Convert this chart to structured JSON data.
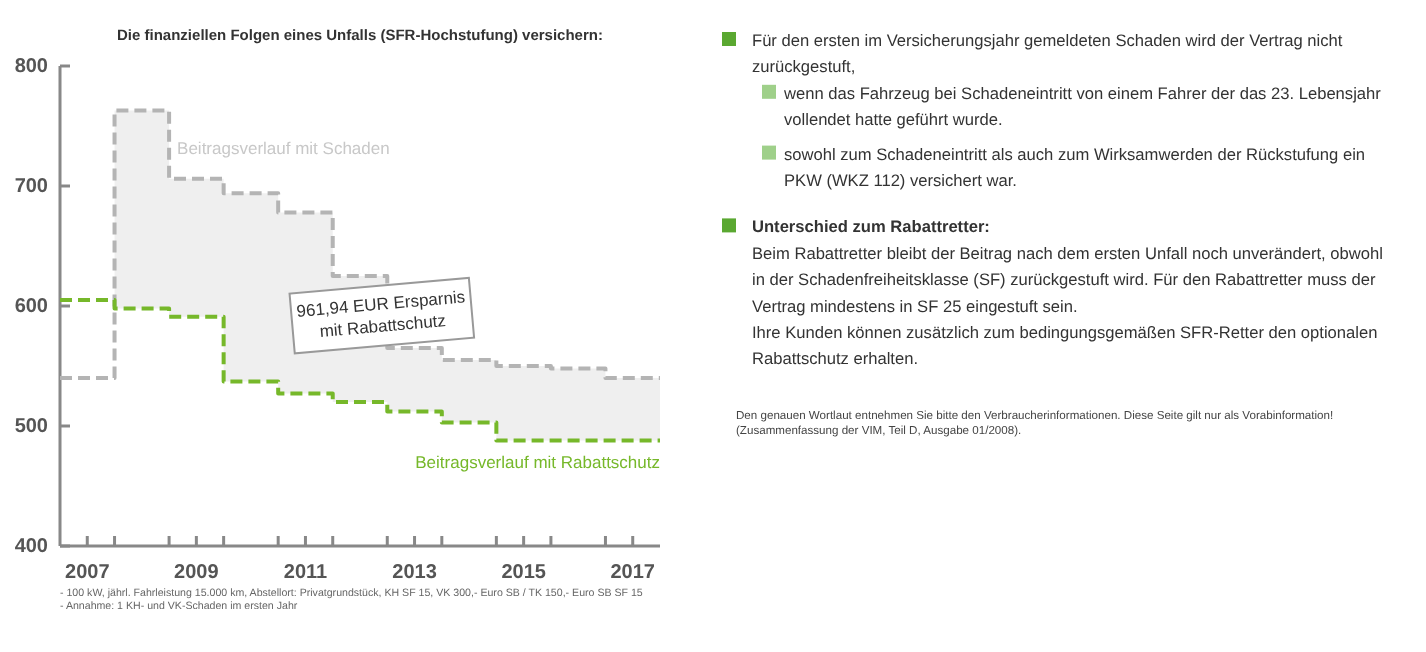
{
  "chart_data": {
    "type": "step",
    "title": "Die finanziellen Folgen eines Unfalls (SFR-Hochstufung) versichern:",
    "x": [
      2006.5,
      2007.5,
      2008.5,
      2009.5,
      2010.5,
      2011.5,
      2012.5,
      2013.5,
      2014.5,
      2015.5,
      2016.5,
      2017.5
    ],
    "series": [
      {
        "name": "Beitragsverlauf mit Schaden",
        "color": "#b4b4b4",
        "values": [
          540,
          763,
          706,
          694,
          678,
          625,
          565,
          555,
          550,
          548,
          540,
          540
        ],
        "lower": [
          null,
          598,
          591,
          537,
          527,
          520,
          512,
          503,
          488,
          488,
          488,
          488
        ],
        "upper": [
          null,
          763,
          706,
          694,
          678,
          625,
          565,
          555,
          550,
          548,
          540,
          540
        ]
      },
      {
        "name": "Beitragsverlauf mit Rabattschutz",
        "color": "#76b82a",
        "values": [
          605,
          598,
          591,
          537,
          527,
          520,
          512,
          503,
          488,
          488,
          488,
          488
        ]
      }
    ],
    "xlim": [
      2006.5,
      2017.5
    ],
    "xticks": [
      {
        "value": 2007,
        "label": "2007"
      },
      {
        "value": 2009,
        "label": "2009"
      },
      {
        "value": 2011,
        "label": "2011"
      },
      {
        "value": 2013,
        "label": "2013"
      },
      {
        "value": 2015,
        "label": "2015"
      },
      {
        "value": 2017,
        "label": "2017"
      },
      {
        "value": 2007.5,
        "label": null
      },
      {
        "value": 2008.5,
        "label": null
      },
      {
        "value": 2009.5,
        "label": null
      },
      {
        "value": 2010.5,
        "label": null
      },
      {
        "value": 2011.5,
        "label": null
      },
      {
        "value": 2012.5,
        "label": null
      },
      {
        "value": 2013.5,
        "label": null
      },
      {
        "value": 2014.5,
        "label": null
      },
      {
        "value": 2015.5,
        "label": null
      },
      {
        "value": 2016.5,
        "label": null
      }
    ],
    "ylim": [
      400,
      800
    ],
    "yticks": [
      400,
      500,
      600,
      700,
      800
    ],
    "grid": false,
    "legend": false,
    "line_style": "dashed",
    "annotations": [
      "961,94 EUR Ersparnis\nmit Rabattschutz",
      "- 100 kW, jährl. Fahrleistung 15.000 km, Abstellort: Privatgrundstück, KH SF 15, VK 300,- Euro SB / TK 150,- Euro SB SF 15",
      "- Annahme: 1 KH- und VK-Schaden im ersten Jahr",
      "Für den ersten im Versicherungsjahr gemeldeten Schaden wird der Vertrag nicht zurückgestuft,",
      "wenn das Fahrzeug bei Schadeneintritt von einem Fahrer der das 23. Lebensjahr vollendet hatte geführt wurde.",
      "sowohl zum Schadeneintritt als auch zum Wirksamwerden der Rückstufung ein PKW (WKZ 112) versichert war.",
      "Unterschied zum Rabattretter:",
      "Beim Rabattretter bleibt der Beitrag nach dem ersten Unfall noch unverändert, obwohl in der Schadenfreiheitsklasse (SF) zurückgestuft wird. Für den Rabattretter muss der Vertrag mindestens in SF 25 eingestuft sein.",
      "Ihre Kunden können zusätzlich zum bedingungsgemäßen SFR-Retter den optionalen Rabattschutz erhalten.",
      "Den genauen Wortlaut entnehmen Sie bitte den Verbraucherinformationen. Diese Seite gilt nur als Vorabinformation! (Zusammenfassung der VIM, Teil D, Ausgabe 01/2008)."
    ]
  }
}
